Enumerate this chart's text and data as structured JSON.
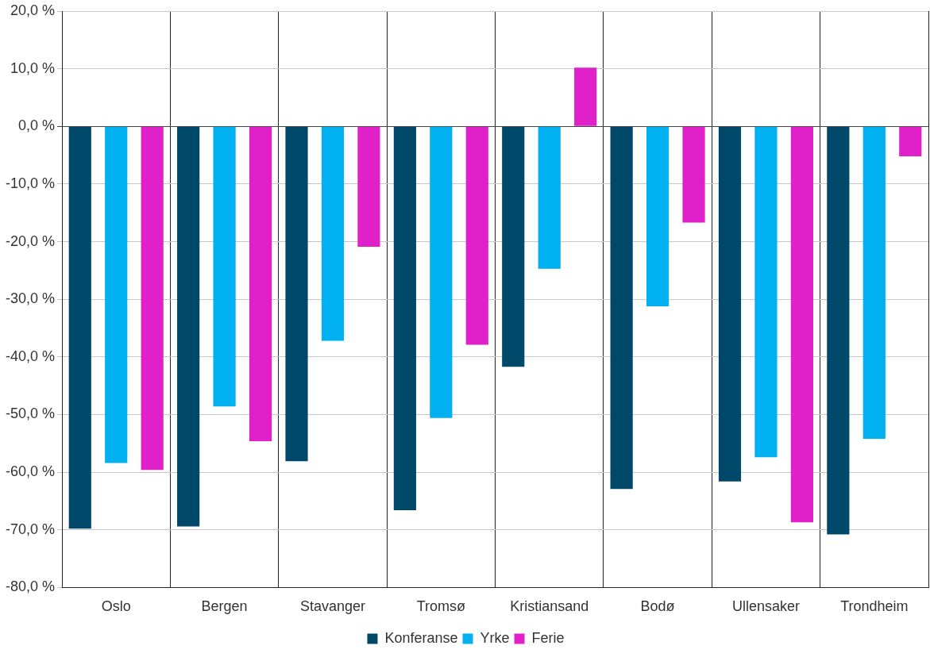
{
  "chart_data": {
    "type": "bar",
    "categories": [
      "Oslo",
      "Bergen",
      "Stavanger",
      "Tromsø",
      "Kristiansand",
      "Bodø",
      "Ullensaker",
      "Trondheim"
    ],
    "series": [
      {
        "name": "Konferanse",
        "color": "#00486a",
        "values": [
          -69.8,
          -69.4,
          -58.1,
          -66.6,
          -41.7,
          -62.9,
          -61.6,
          -70.8
        ]
      },
      {
        "name": "Yrke",
        "color": "#00b0f0",
        "values": [
          -58.4,
          -48.6,
          -37.2,
          -50.6,
          -24.7,
          -31.2,
          -57.4,
          -54.2
        ]
      },
      {
        "name": "Ferie",
        "color": "#e020c8",
        "values": [
          -59.6,
          -54.6,
          -20.9,
          -37.9,
          10.2,
          -16.7,
          -68.7,
          -5.2
        ]
      }
    ],
    "ylim": [
      -80,
      20
    ],
    "yticks": [
      {
        "value": -80,
        "label": "-80,0 %"
      },
      {
        "value": -70,
        "label": "-70,0 %"
      },
      {
        "value": -60,
        "label": "-60,0 %"
      },
      {
        "value": -50,
        "label": "-50,0 %"
      },
      {
        "value": -40,
        "label": "-40,0 %"
      },
      {
        "value": -30,
        "label": "-30,0 %"
      },
      {
        "value": -20,
        "label": "-20,0 %"
      },
      {
        "value": -10,
        "label": "-10,0 %"
      },
      {
        "value": 0,
        "label": "0,0 %"
      },
      {
        "value": 10,
        "label": "10,0 %"
      },
      {
        "value": 20,
        "label": "20,0 %"
      }
    ],
    "grid": true,
    "legend": "bottom"
  }
}
